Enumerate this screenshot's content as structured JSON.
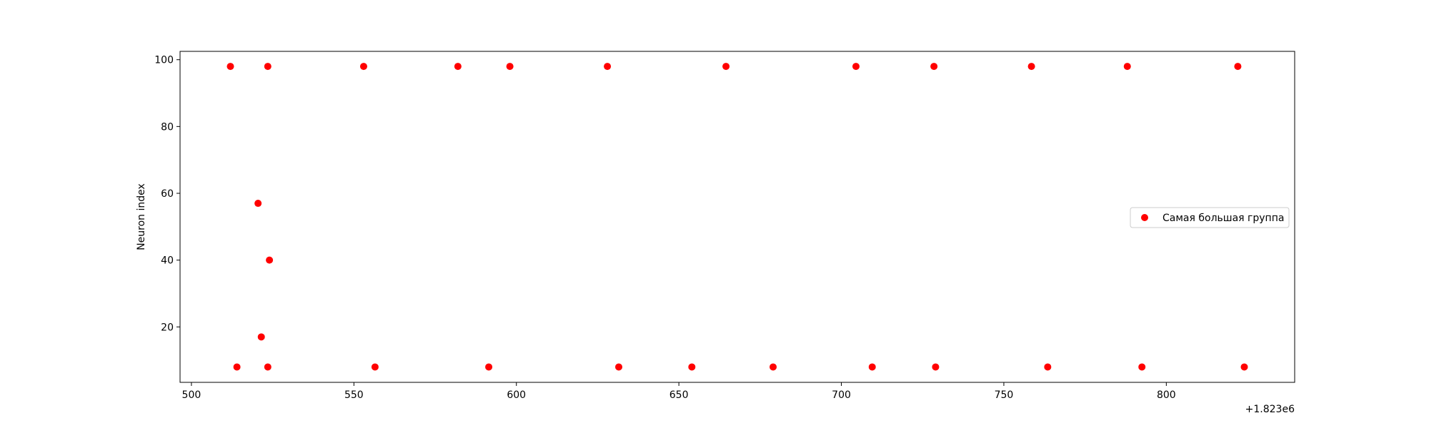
{
  "chart_data": {
    "type": "scatter",
    "ylabel": "Neuron index",
    "xlabel": "",
    "x_offset_label": "+1.823e6",
    "xlim": [
      496.5,
      839.5
    ],
    "ylim": [
      3.4,
      102.5
    ],
    "x_ticks": [
      500,
      550,
      600,
      650,
      700,
      750,
      800
    ],
    "y_ticks": [
      20,
      40,
      60,
      80,
      100
    ],
    "grid": false,
    "legend_position": "center-right",
    "series": [
      {
        "name": "Самая большая группа",
        "color": "#ff0000",
        "points": [
          {
            "x": 512,
            "y": 98
          },
          {
            "x": 523.5,
            "y": 98
          },
          {
            "x": 553,
            "y": 98
          },
          {
            "x": 582,
            "y": 98
          },
          {
            "x": 598,
            "y": 98
          },
          {
            "x": 628,
            "y": 98
          },
          {
            "x": 664.5,
            "y": 98
          },
          {
            "x": 704.5,
            "y": 98
          },
          {
            "x": 728.5,
            "y": 98
          },
          {
            "x": 758.5,
            "y": 98
          },
          {
            "x": 788,
            "y": 98
          },
          {
            "x": 822,
            "y": 98
          },
          {
            "x": 520.5,
            "y": 57
          },
          {
            "x": 524,
            "y": 40
          },
          {
            "x": 521.5,
            "y": 17
          },
          {
            "x": 514,
            "y": 8
          },
          {
            "x": 523.5,
            "y": 8
          },
          {
            "x": 556.5,
            "y": 8
          },
          {
            "x": 591.5,
            "y": 8
          },
          {
            "x": 631.5,
            "y": 8
          },
          {
            "x": 654,
            "y": 8
          },
          {
            "x": 679,
            "y": 8
          },
          {
            "x": 709.5,
            "y": 8
          },
          {
            "x": 729,
            "y": 8
          },
          {
            "x": 763.5,
            "y": 8
          },
          {
            "x": 792.5,
            "y": 8
          },
          {
            "x": 824,
            "y": 8
          }
        ]
      }
    ]
  }
}
